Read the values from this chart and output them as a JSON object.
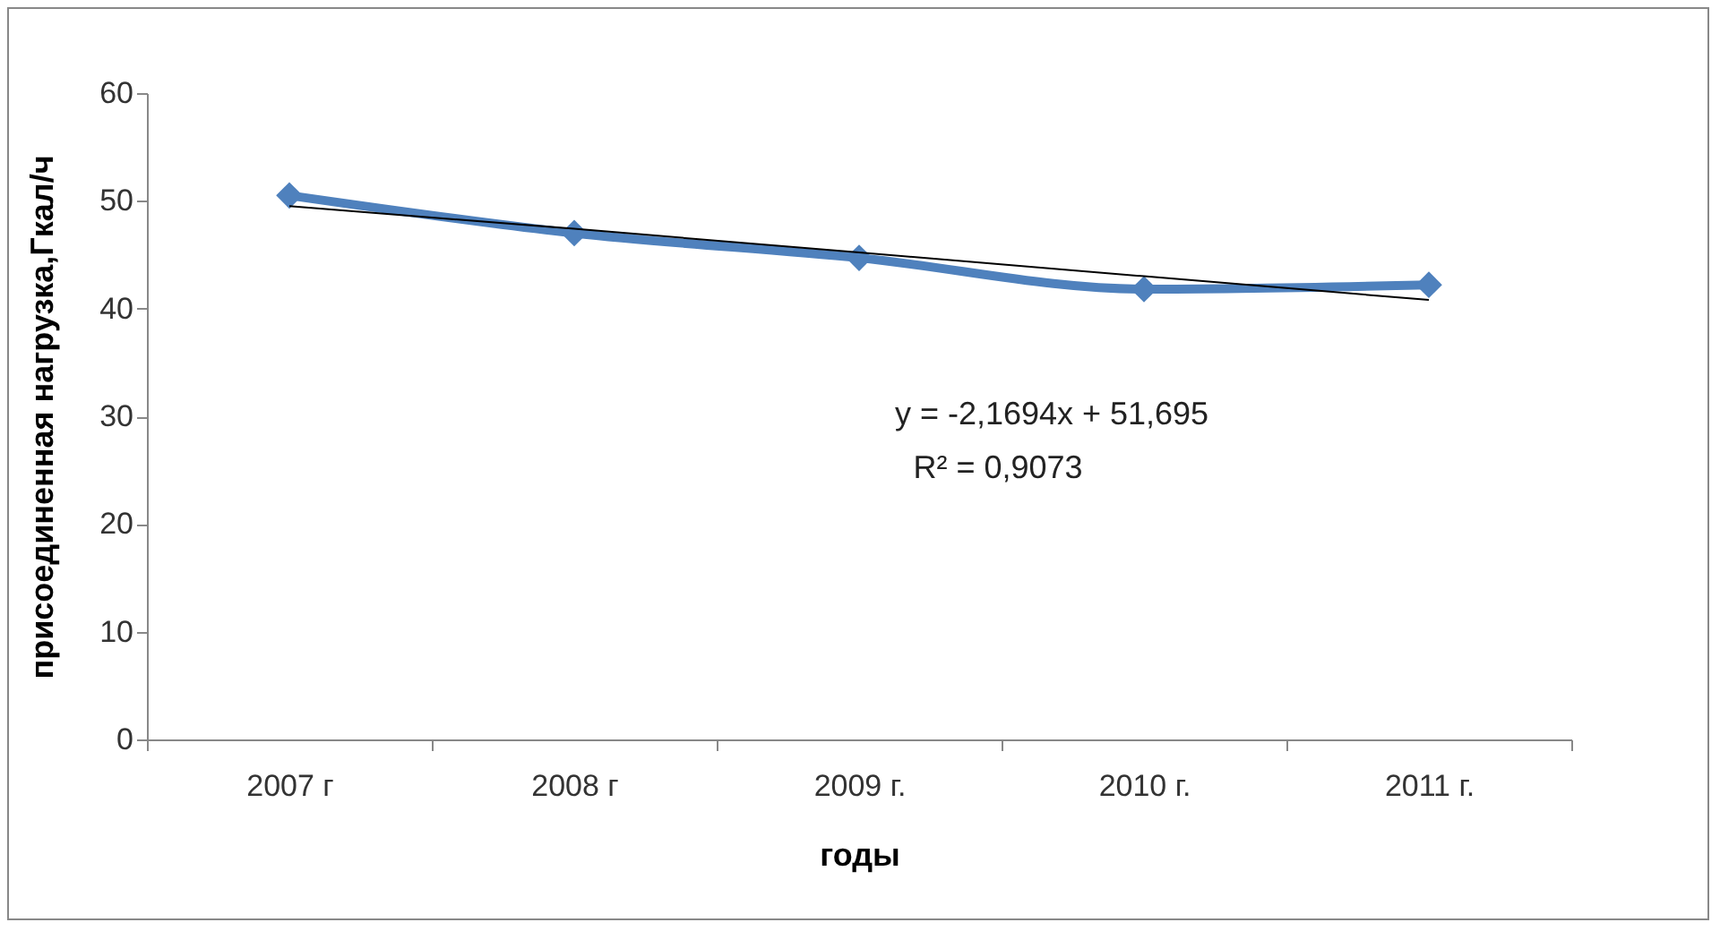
{
  "chart_data": {
    "type": "line",
    "xlabel": "годы",
    "ylabel": "присоединенная нагрузка,Гкал/ч",
    "categories": [
      "2007 г",
      "2008 г",
      "2009 г.",
      "2010 г.",
      "2011 г."
    ],
    "ylim": [
      0,
      60
    ],
    "yticks": [
      0,
      10,
      20,
      30,
      40,
      50,
      60
    ],
    "marker": "diamond",
    "series": [
      {
        "color": "#4f81bd",
        "values": [
          50.5,
          47,
          44.7,
          41.8,
          42.2
        ]
      },
      {
        "type": "line",
        "color": "#000000",
        "marker": "none",
        "x": [
          "2007 г",
          "2008 г",
          "2009 г.",
          "2010 г.",
          "2011 г."
        ],
        "values": [
          49.5,
          47.4,
          45.2,
          43,
          40.8
        ]
      }
    ],
    "annotations": [
      "y = -2,1694x + 51,695",
      "R² = 0,9073"
    ]
  }
}
